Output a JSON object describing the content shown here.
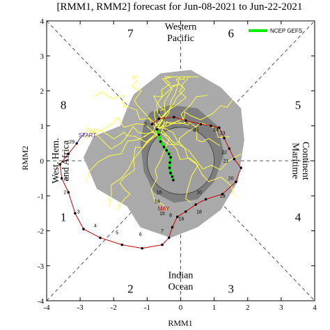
{
  "chart_data": {
    "type": "line",
    "title": "[RMM1, RMM2] forecast for Jun-08-2021 to Jun-22-2021",
    "xlabel": "RMM1",
    "ylabel": "RMM2",
    "xlim": [
      -4,
      4
    ],
    "ylim": [
      -4,
      4
    ],
    "xticks": [
      "-4",
      "-3",
      "-2",
      "-1",
      "0",
      "1",
      "2",
      "3",
      "4"
    ],
    "yticks": [
      "-4",
      "-3",
      "-2",
      "-1",
      "0",
      "1",
      "2",
      "3",
      "4"
    ],
    "grid": "dashed phase-diagram diagonals, unit circle",
    "legend_position": "top-right",
    "phase_labels": [
      {
        "text": "1",
        "x": -3.5,
        "y": -1.6
      },
      {
        "text": "2",
        "x": -1.5,
        "y": -3.65
      },
      {
        "text": "3",
        "x": 1.5,
        "y": -3.65
      },
      {
        "text": "4",
        "x": 3.5,
        "y": -1.6
      },
      {
        "text": "5",
        "x": 3.5,
        "y": 1.6
      },
      {
        "text": "6",
        "x": 1.5,
        "y": 3.65
      },
      {
        "text": "7",
        "x": -1.5,
        "y": 3.65
      },
      {
        "text": "8",
        "x": -3.5,
        "y": 1.6
      }
    ],
    "region_labels": {
      "top": [
        "Western",
        "Pacific"
      ],
      "bottom": [
        "Indian",
        "Ocean"
      ],
      "left": [
        "West. Hem.",
        "and Africa"
      ],
      "right": [
        "Maritime",
        "Continent"
      ]
    },
    "annotations": {
      "start": "START",
      "month": "MAY"
    },
    "series": [
      {
        "name": "NCEP GEFS",
        "color": "#00ee00",
        "x": [
          -0.7,
          -0.65,
          -0.6,
          -0.5,
          -0.42,
          -0.35,
          -0.3,
          -0.32,
          -0.33,
          -0.3,
          -0.25,
          -0.22
        ],
        "y": [
          0.9,
          0.75,
          0.55,
          0.4,
          0.3,
          0.2,
          0.1,
          -0.05,
          -0.2,
          -0.35,
          -0.45,
          -0.55
        ]
      }
    ],
    "observed": {
      "color": "#cc0000",
      "x": [
        -3.1,
        -3.35,
        -3.6,
        -3.55,
        -3.35,
        -3.15,
        -2.9,
        -2.4,
        -1.75,
        -1.15,
        -0.55,
        -0.35,
        -0.25,
        -0.1,
        0.15,
        0.45,
        0.75,
        1.25,
        1.65,
        1.8,
        1.6,
        1.45,
        1.3,
        1.15,
        0.9,
        0.6,
        0.15,
        -0.2,
        -0.65,
        -0.85
      ],
      "y": [
        0.5,
        0.2,
        -0.1,
        -0.5,
        -0.9,
        -1.5,
        -1.95,
        -2.2,
        -2.4,
        -2.5,
        -2.4,
        -2.2,
        -1.9,
        -1.6,
        -1.45,
        -1.25,
        -1.1,
        -0.95,
        -0.6,
        -0.2,
        0.05,
        0.35,
        0.65,
        0.95,
        1.0,
        1.05,
        1.15,
        1.25,
        1.2,
        1.05
      ],
      "day_labels": [
        {
          "text": "29",
          "x": -3.25,
          "y": 0.5
        },
        {
          "text": "1",
          "x": -3.42,
          "y": -0.55
        },
        {
          "text": "2",
          "x": -3.45,
          "y": -0.95
        },
        {
          "text": "3",
          "x": -3.05,
          "y": -1.5
        },
        {
          "text": "4",
          "x": -2.55,
          "y": -1.9
        },
        {
          "text": "5",
          "x": -1.9,
          "y": -2.1
        },
        {
          "text": "6",
          "x": -1.2,
          "y": -2.15
        },
        {
          "text": "7",
          "x": -0.55,
          "y": -2.05
        },
        {
          "text": "14",
          "x": -0.7,
          "y": -1.2
        },
        {
          "text": "15",
          "x": -0.55,
          "y": -1.55
        },
        {
          "text": "16",
          "x": 0.02,
          "y": -1.7
        },
        {
          "text": "18",
          "x": -0.65,
          "y": -0.95
        },
        {
          "text": "18",
          "x": 0.55,
          "y": -1.5
        },
        {
          "text": "19",
          "x": 1.25,
          "y": -1.05
        },
        {
          "text": "20",
          "x": 1.5,
          "y": -0.55
        },
        {
          "text": "21",
          "x": 1.35,
          "y": -0.05
        },
        {
          "text": "22",
          "x": 1.3,
          "y": 0.2
        },
        {
          "text": "23",
          "x": 1.25,
          "y": 0.75
        },
        {
          "text": "24",
          "x": 1.05,
          "y": 0.85
        },
        {
          "text": "25",
          "x": 0.45,
          "y": 0.85
        },
        {
          "text": "1",
          "x": -0.65,
          "y": 1.35
        },
        {
          "text": "2",
          "x": -0.5,
          "y": 1.15
        },
        {
          "text": "3",
          "x": -1.05,
          "y": 1.0
        },
        {
          "text": "10",
          "x": 0.55,
          "y": -0.95
        },
        {
          "text": "8",
          "x": -0.3,
          "y": -1.6
        }
      ]
    },
    "spread": {
      "outer_color": "#aaaaaa",
      "inner_color": "#777777",
      "ensemble_color": "#ffff44"
    }
  }
}
